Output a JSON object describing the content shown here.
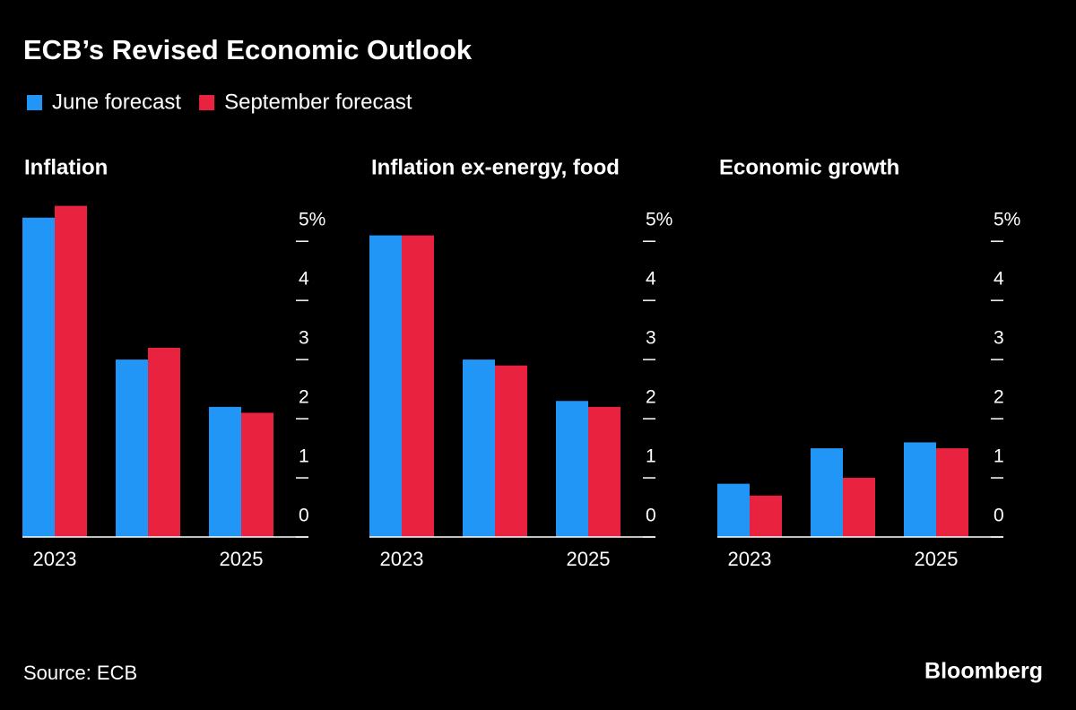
{
  "title": "ECB’s Revised Economic Outlook",
  "source": "Source: ECB",
  "brand": "Bloomberg",
  "chart_data": [
    {
      "type": "bar",
      "title": "Inflation",
      "categories": [
        "2023",
        null,
        "2025"
      ],
      "series": [
        {
          "name": "June forecast",
          "color": "#2196f7",
          "values": [
            5.4,
            3.0,
            2.2
          ]
        },
        {
          "name": "September forecast",
          "color": "#e8223f",
          "values": [
            5.6,
            3.2,
            2.1
          ]
        }
      ],
      "ylim": [
        0,
        5.7
      ],
      "yticks": [
        0,
        1,
        2,
        3,
        4,
        {
          "value": 5,
          "label": "5%"
        }
      ]
    },
    {
      "type": "bar",
      "title": "Inflation ex-energy, food",
      "categories": [
        "2023",
        null,
        "2025"
      ],
      "series": [
        {
          "color": "#2196f7",
          "values": [
            5.1,
            3.0,
            2.3
          ]
        },
        {
          "color": "#e8223f",
          "values": [
            5.1,
            2.9,
            2.2
          ]
        }
      ],
      "ylim": [
        0,
        5.7
      ],
      "yticks": [
        0,
        1,
        2,
        3,
        4,
        {
          "value": 5,
          "label": "5%"
        }
      ]
    },
    {
      "type": "bar",
      "title": "Economic growth",
      "categories": [
        "2023",
        null,
        "2025"
      ],
      "series": [
        {
          "color": "#2196f7",
          "values": [
            0.9,
            1.5,
            1.6
          ]
        },
        {
          "color": "#e8223f",
          "values": [
            0.7,
            1.0,
            1.5
          ]
        }
      ],
      "ylim": [
        0,
        5.7
      ],
      "yticks": [
        0,
        1,
        2,
        3,
        4,
        {
          "value": 5,
          "label": "5%"
        }
      ]
    }
  ]
}
